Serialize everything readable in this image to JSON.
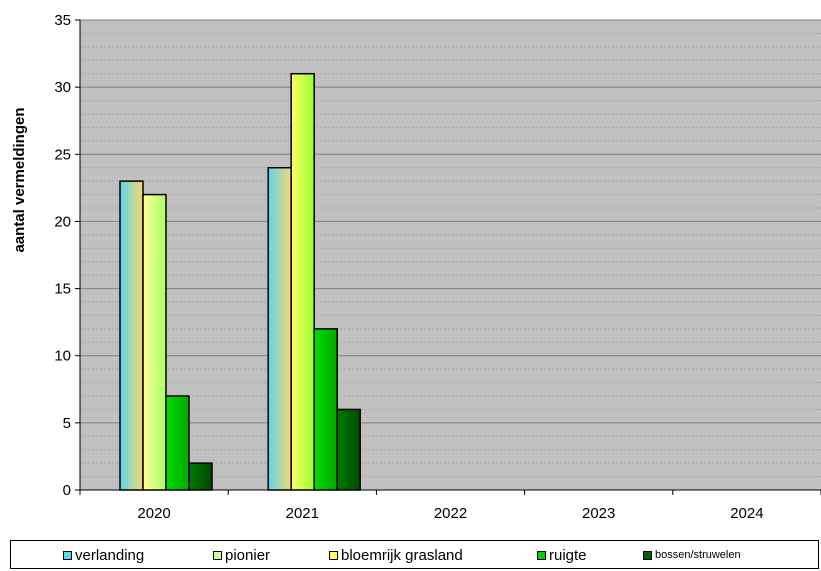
{
  "chart_data": {
    "type": "bar",
    "title": "",
    "xlabel": "",
    "ylabel": "aantal vermeldingen",
    "ylim": [
      0,
      35
    ],
    "yticks": [
      0,
      5,
      10,
      15,
      20,
      25,
      30,
      35
    ],
    "categories": [
      "2020",
      "2021",
      "2022",
      "2023",
      "2024"
    ],
    "series": [
      {
        "name": "verlanding",
        "color": "#5cd6f0",
        "values": [
          23,
          24,
          null,
          null,
          null
        ]
      },
      {
        "name": "pionier",
        "color": "#ccff99",
        "values": [
          22,
          null,
          null,
          null,
          null
        ]
      },
      {
        "name": "bloemrijk grasland",
        "color": "#d8ff3a",
        "values": [
          null,
          31,
          null,
          null,
          null
        ]
      },
      {
        "name": "ruigte",
        "color": "#00d000",
        "values": [
          7,
          12,
          null,
          null,
          null
        ]
      },
      {
        "name": "bossen/struwelen",
        "color": "#006400",
        "values": [
          2,
          6,
          null,
          null,
          null
        ]
      }
    ],
    "grid": true,
    "plot_background": "#c0c0c0",
    "legend_position": "bottom"
  }
}
